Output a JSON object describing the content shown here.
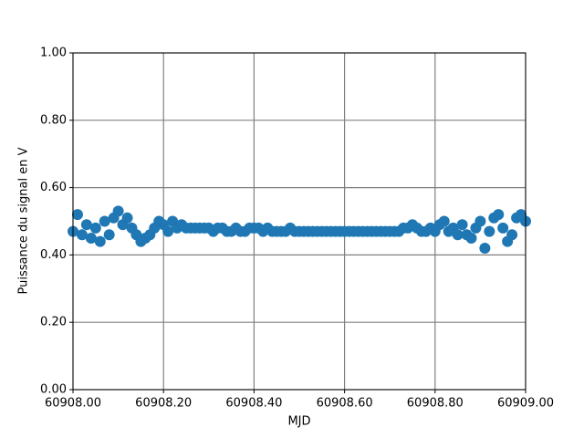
{
  "chart_data": {
    "type": "scatter",
    "xlabel": "MJD",
    "ylabel": "Puissance du signal en V",
    "xlim": [
      60908.0,
      60909.0
    ],
    "xticks": [
      {
        "value": 60908.0,
        "label": "60908.00"
      },
      {
        "value": 60908.2,
        "label": "60908.20"
      },
      {
        "value": 60908.4,
        "label": "60908.40"
      },
      {
        "value": 60908.6,
        "label": "60908.60"
      },
      {
        "value": 60908.8,
        "label": "60908.80"
      },
      {
        "value": 60909.0,
        "label": "60909.00"
      }
    ],
    "ylim": [
      0,
      1
    ],
    "yticks": [
      {
        "value": 0,
        "label": "0.00"
      },
      {
        "value": 0.2,
        "label": "0.20"
      },
      {
        "value": 0.4,
        "label": "0.40"
      },
      {
        "value": 0.6,
        "label": "0.60"
      },
      {
        "value": 0.8,
        "label": "0.80"
      },
      {
        "value": 1,
        "label": "1.00"
      }
    ],
    "grid": true,
    "color": "#1f77b4",
    "x": [
      60908.0,
      60908.01,
      60908.02,
      60908.03,
      60908.04,
      60908.05,
      60908.06,
      60908.07,
      60908.08,
      60908.09,
      60908.1,
      60908.11,
      60908.12,
      60908.13,
      60908.14,
      60908.15,
      60908.16,
      60908.17,
      60908.18,
      60908.19,
      60908.2,
      60908.21,
      60908.22,
      60908.23,
      60908.24,
      60908.25,
      60908.26,
      60908.27,
      60908.28,
      60908.29,
      60908.3,
      60908.31,
      60908.32,
      60908.33,
      60908.34,
      60908.35,
      60908.36,
      60908.37,
      60908.38,
      60908.39,
      60908.4,
      60908.41,
      60908.42,
      60908.43,
      60908.44,
      60908.45,
      60908.46,
      60908.47,
      60908.48,
      60908.49,
      60908.5,
      60908.51,
      60908.52,
      60908.53,
      60908.54,
      60908.55,
      60908.56,
      60908.57,
      60908.58,
      60908.59,
      60908.6,
      60908.61,
      60908.62,
      60908.63,
      60908.64,
      60908.65,
      60908.66,
      60908.67,
      60908.68,
      60908.69,
      60908.7,
      60908.71,
      60908.72,
      60908.73,
      60908.74,
      60908.75,
      60908.76,
      60908.77,
      60908.78,
      60908.79,
      60908.8,
      60908.81,
      60908.82,
      60908.83,
      60908.84,
      60908.85,
      60908.86,
      60908.87,
      60908.88,
      60908.89,
      60908.9,
      60908.91,
      60908.92,
      60908.93,
      60908.94,
      60908.95,
      60908.96,
      60908.97,
      60908.98,
      60908.99,
      60909.0
    ],
    "values": [
      0.47,
      0.52,
      0.46,
      0.49,
      0.45,
      0.48,
      0.44,
      0.5,
      0.46,
      0.51,
      0.53,
      0.49,
      0.51,
      0.48,
      0.46,
      0.44,
      0.45,
      0.46,
      0.48,
      0.5,
      0.49,
      0.47,
      0.5,
      0.48,
      0.49,
      0.48,
      0.48,
      0.48,
      0.48,
      0.48,
      0.48,
      0.47,
      0.48,
      0.48,
      0.47,
      0.47,
      0.48,
      0.47,
      0.47,
      0.48,
      0.48,
      0.48,
      0.47,
      0.48,
      0.47,
      0.47,
      0.47,
      0.47,
      0.48,
      0.47,
      0.47,
      0.47,
      0.47,
      0.47,
      0.47,
      0.47,
      0.47,
      0.47,
      0.47,
      0.47,
      0.47,
      0.47,
      0.47,
      0.47,
      0.47,
      0.47,
      0.47,
      0.47,
      0.47,
      0.47,
      0.47,
      0.47,
      0.47,
      0.48,
      0.48,
      0.49,
      0.48,
      0.47,
      0.47,
      0.48,
      0.47,
      0.49,
      0.5,
      0.47,
      0.48,
      0.46,
      0.49,
      0.46,
      0.45,
      0.48,
      0.5,
      0.42,
      0.47,
      0.51,
      0.52,
      0.48,
      0.44,
      0.46,
      0.51,
      0.52,
      0.5
    ]
  }
}
